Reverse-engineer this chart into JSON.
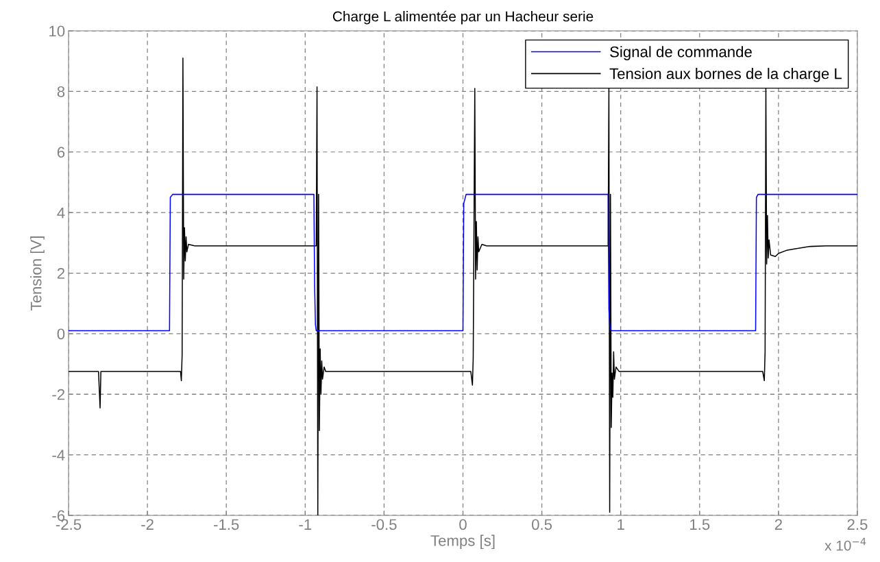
{
  "chart_data": {
    "type": "line",
    "title": "Charge L alimentée par un Hacheur serie",
    "xlabel": "Temps [s]",
    "ylabel": "Tension [V]",
    "annotations": [
      "x 10$^{−4}$"
    ],
    "xlim": [
      -2.5,
      2.5
    ],
    "xticks": [
      -2.5,
      -2,
      -1.5,
      -1,
      -0.5,
      0,
      0.5,
      1,
      1.5,
      2,
      2.5
    ],
    "ylim": [
      -6,
      10
    ],
    "yticks": [
      -6,
      -4,
      -2,
      0,
      2,
      4,
      6,
      8,
      10
    ],
    "grid": true,
    "legend": "top right",
    "line_style": "solid",
    "marker": "none",
    "series": [
      {
        "name": "Signal de commande",
        "color": "#0000ff",
        "x": [
          -2.5,
          -1.86,
          -1.855,
          -1.84,
          -0.945,
          -0.94,
          -0.935,
          -0.93,
          0.0,
          0.005,
          0.02,
          0.92,
          0.925,
          0.93,
          0.935,
          0.94,
          1.855,
          1.86,
          1.87,
          2.5
        ],
        "values": [
          0.1,
          0.1,
          4.5,
          4.6,
          4.6,
          1.5,
          0.3,
          0.1,
          0.1,
          4.3,
          4.6,
          4.6,
          0.8,
          0.3,
          0.15,
          0.1,
          0.1,
          4.5,
          4.6,
          4.6
        ]
      },
      {
        "name": "Tension aux bornes de la charge L",
        "color": "#000000",
        "x": [
          -2.5,
          -2.31,
          -2.3,
          -2.295,
          -1.79,
          -1.785,
          -1.78,
          -1.775,
          -1.77,
          -1.765,
          -1.76,
          -1.755,
          -1.75,
          -1.74,
          -1.7,
          -0.93,
          -0.925,
          -0.92,
          -0.915,
          -0.91,
          -0.905,
          -0.9,
          -0.895,
          -0.89,
          -0.88,
          -0.87,
          0.05,
          0.06,
          0.065,
          0.075,
          0.08,
          0.085,
          0.09,
          0.095,
          0.1,
          0.12,
          0.15,
          0.92,
          0.925,
          0.93,
          0.935,
          0.94,
          0.945,
          0.95,
          0.955,
          0.96,
          0.97,
          0.99,
          1.9,
          1.91,
          1.915,
          1.92,
          1.925,
          1.93,
          1.935,
          1.94,
          1.95,
          1.98,
          2.0,
          2.05,
          2.1,
          2.2,
          2.3,
          2.5
        ],
        "values": [
          -1.25,
          -1.25,
          -2.45,
          -1.25,
          -1.25,
          -1.55,
          -0.7,
          9.1,
          1.8,
          3.5,
          2.4,
          3.2,
          2.7,
          2.95,
          2.9,
          2.9,
          8.15,
          -6,
          4.6,
          -3.2,
          -0.5,
          -2.0,
          -0.9,
          -1.5,
          -1.1,
          -1.25,
          -1.25,
          -1.7,
          -0.8,
          8.1,
          1.8,
          3.7,
          2.1,
          3.2,
          2.7,
          2.95,
          2.9,
          2.9,
          8.1,
          -5.9,
          4.6,
          -3.1,
          -1.3,
          -2.1,
          -0.6,
          -1.5,
          -1.1,
          -1.25,
          -1.25,
          -1.55,
          -0.6,
          8.1,
          2.3,
          3.9,
          2.5,
          3.1,
          2.6,
          2.55,
          2.65,
          2.75,
          2.8,
          2.88,
          2.9,
          2.9
        ]
      }
    ]
  }
}
